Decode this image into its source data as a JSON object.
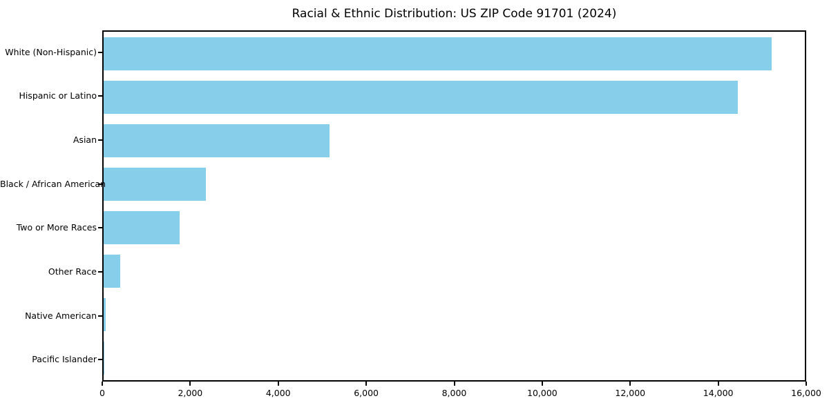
{
  "chart_data": {
    "type": "bar",
    "orientation": "horizontal",
    "title": "Racial & Ethnic Distribution: US ZIP Code 91701 (2024)",
    "categories": [
      "White (Non-Hispanic)",
      "Hispanic or Latino",
      "Asian",
      "Black / African American",
      "Two or More Races",
      "Other Race",
      "Native American",
      "Pacific Islander"
    ],
    "values": [
      15250,
      14470,
      5160,
      2340,
      1740,
      375,
      40,
      15
    ],
    "xlabel": "",
    "ylabel": "",
    "xlim": [
      0,
      16000
    ],
    "x_ticks": [
      0,
      2000,
      4000,
      6000,
      8000,
      10000,
      12000,
      14000,
      16000
    ],
    "x_tick_labels": [
      "0",
      "2,000",
      "4,000",
      "6,000",
      "8,000",
      "10,000",
      "12,000",
      "14,000",
      "16,000"
    ],
    "bar_color": "#87CEEB",
    "axis_color": "#000000",
    "grid": false,
    "legend": false
  }
}
